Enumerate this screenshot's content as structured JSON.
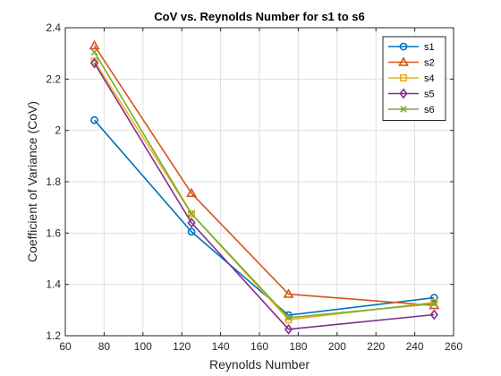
{
  "chart_data": {
    "type": "line",
    "title": "CoV vs. Reynolds Number for s1 to s6",
    "xlabel": "Reynolds Number",
    "ylabel": "Coefficient of Variance (CoV)",
    "xlim": [
      60,
      260
    ],
    "ylim": [
      1.2,
      2.4
    ],
    "xticks": [
      60,
      80,
      100,
      120,
      140,
      160,
      180,
      200,
      220,
      240,
      260
    ],
    "yticks": [
      1.2,
      1.4,
      1.6,
      1.8,
      2,
      2.2,
      2.4
    ],
    "xtick_labels": [
      "60",
      "80",
      "100",
      "120",
      "140",
      "160",
      "180",
      "200",
      "220",
      "240",
      "260"
    ],
    "ytick_labels": [
      "1.2",
      "1.4",
      "1.6",
      "1.8",
      "2",
      "2.2",
      "2.4"
    ],
    "grid": true,
    "legend_position": "top-right",
    "x": [
      75,
      125,
      175,
      250
    ],
    "series": [
      {
        "name": "s1",
        "color": "#0072BD",
        "marker": "circle",
        "values": [
          2.04,
          1.605,
          1.28,
          1.348
        ]
      },
      {
        "name": "s2",
        "color": "#D95319",
        "marker": "triangle",
        "values": [
          2.33,
          1.755,
          1.362,
          1.318
        ]
      },
      {
        "name": "s4",
        "color": "#EDB120",
        "marker": "square",
        "values": [
          2.27,
          1.675,
          1.262,
          1.33
        ]
      },
      {
        "name": "s5",
        "color": "#7E2F8E",
        "marker": "diamond",
        "values": [
          2.262,
          1.64,
          1.225,
          1.282
        ]
      },
      {
        "name": "s6",
        "color": "#77AC30",
        "marker": "x",
        "values": [
          2.305,
          1.675,
          1.27,
          1.325
        ]
      }
    ]
  }
}
